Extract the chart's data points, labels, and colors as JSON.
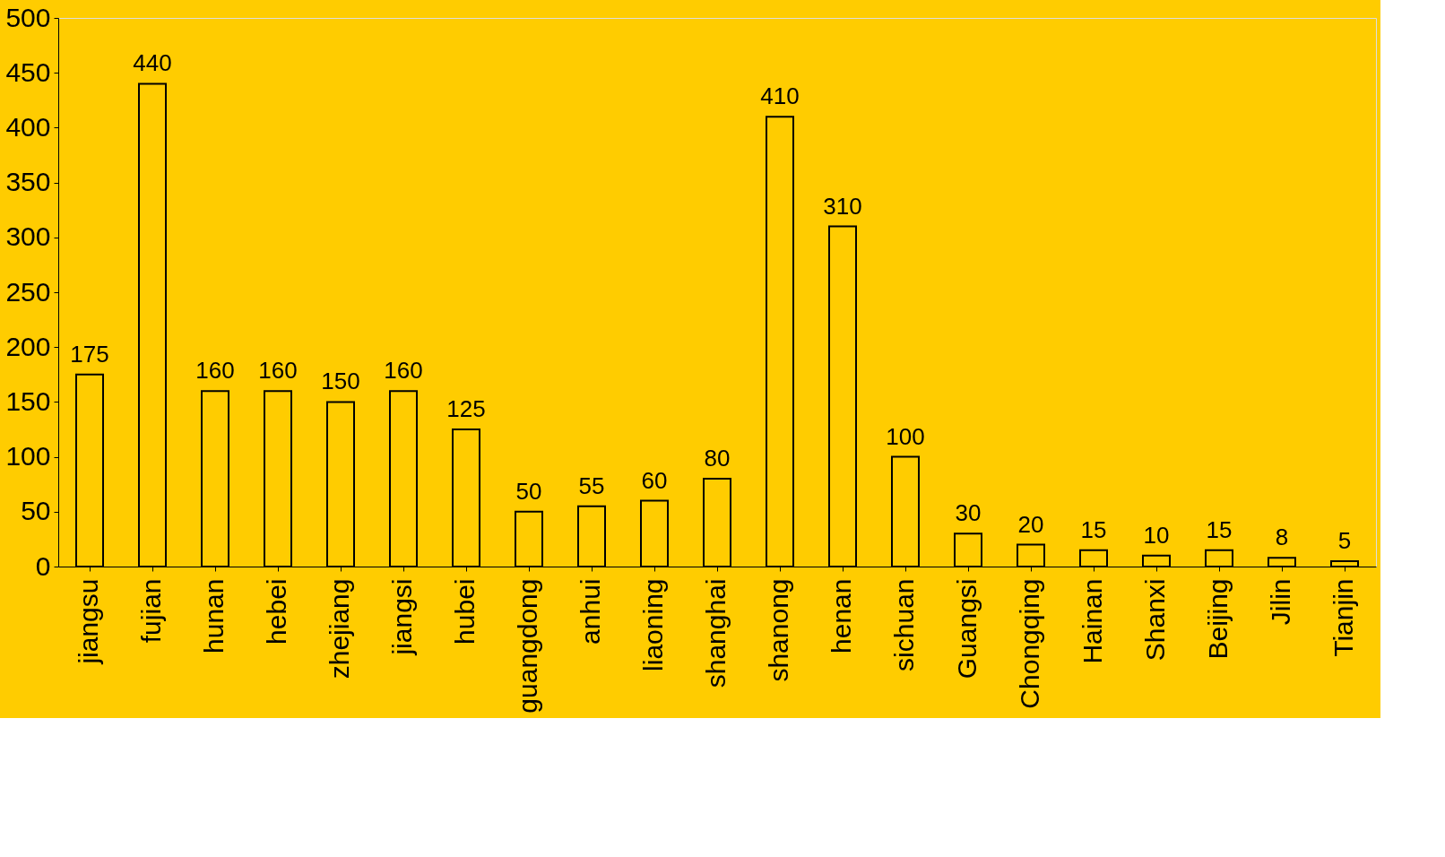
{
  "chart_data": {
    "type": "bar",
    "categories": [
      "jiangsu",
      "fujian",
      "hunan",
      "hebei",
      "zhejiang",
      "jiangsi",
      "hubei",
      "guangdong",
      "anhui",
      "liaoning",
      "shanghai",
      "shanong",
      "henan",
      "sichuan",
      "Guangsi",
      "Chongqing",
      "Hainan",
      "Shanxi",
      "Beijing",
      "Jilin",
      "Tianjin"
    ],
    "values": [
      175,
      440,
      160,
      160,
      150,
      160,
      125,
      50,
      55,
      60,
      80,
      410,
      310,
      100,
      30,
      20,
      15,
      10,
      15,
      8,
      5
    ],
    "color": "#ffcc00",
    "ylim": [
      0,
      500
    ],
    "yticks": [
      0,
      50,
      100,
      150,
      200,
      250,
      300,
      350,
      400,
      450,
      500
    ],
    "grid": false,
    "data_labels": true
  }
}
